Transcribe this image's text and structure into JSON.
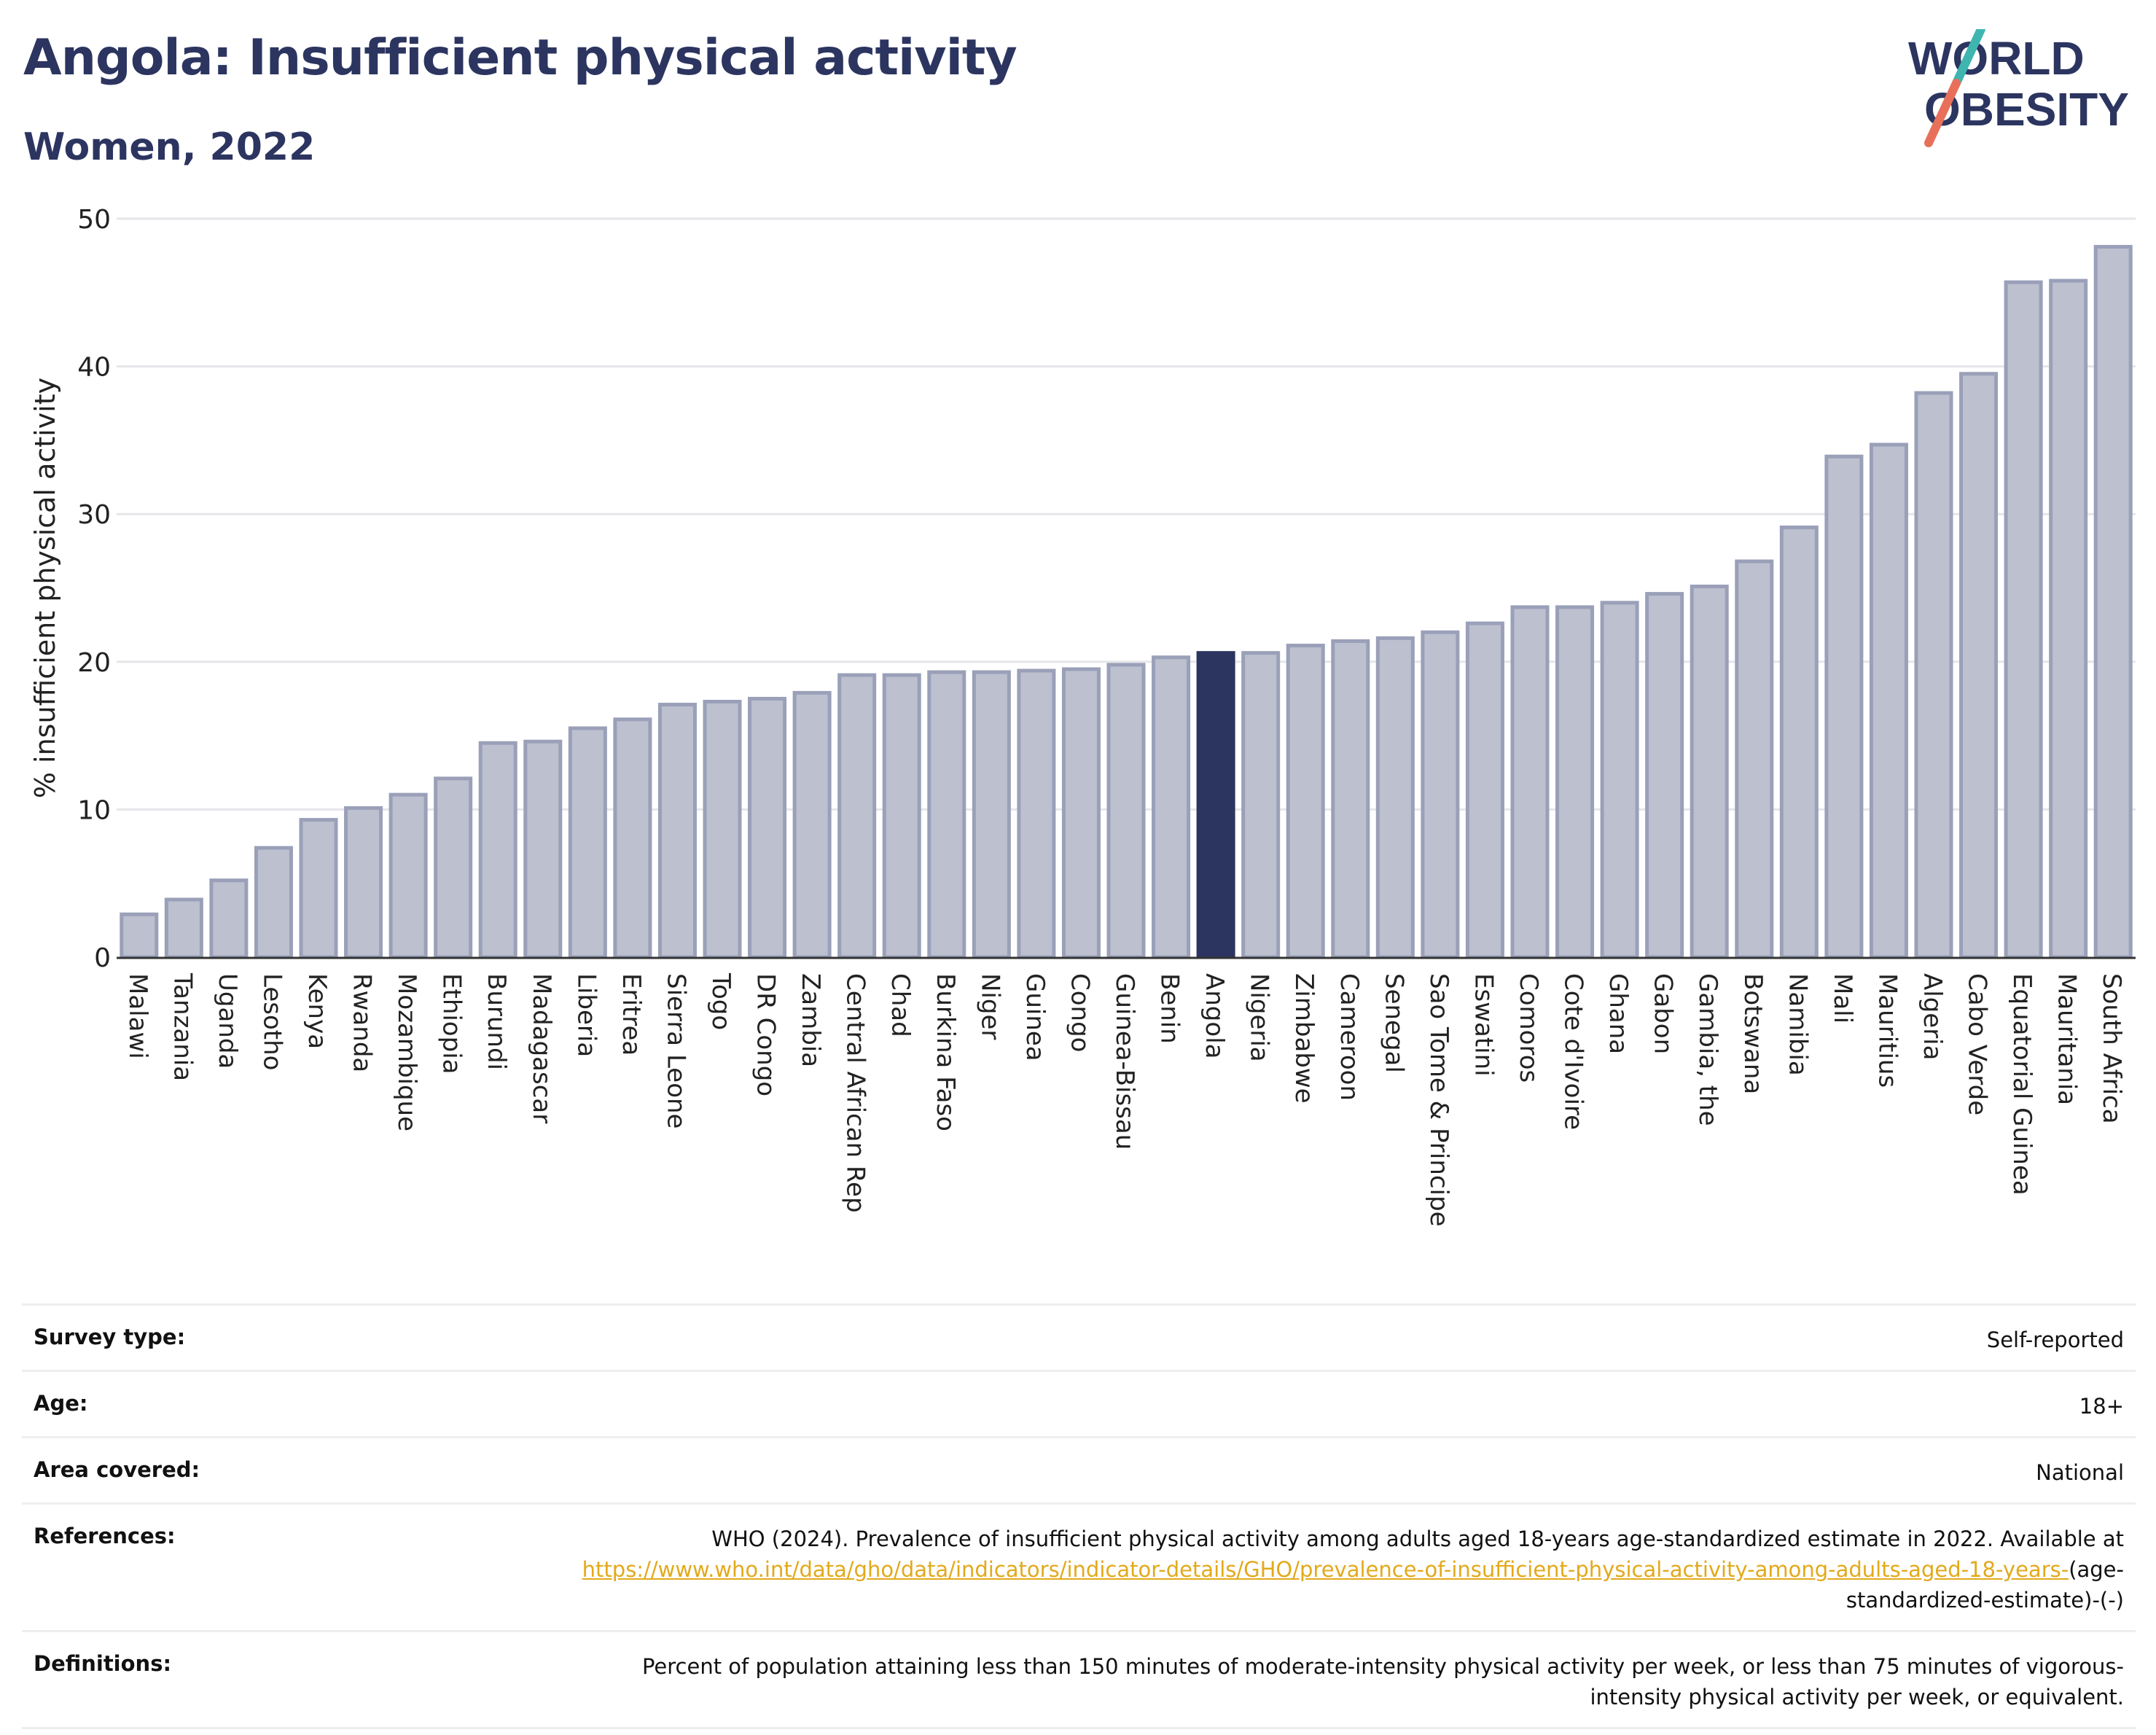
{
  "header": {
    "title": "Angola: Insufficient physical activity",
    "subtitle": "Women, 2022",
    "logo_line1": "WORLD",
    "logo_line2": "OBESITY"
  },
  "colors": {
    "bar": "#bcc0cf",
    "bar_border": "#9aa0b8",
    "highlight": "#2c3560",
    "title": "#2c3560",
    "link": "#e2a91b",
    "logo_teal": "#3fb5b0",
    "logo_coral": "#e8705a"
  },
  "chart_data": {
    "type": "bar",
    "title": "Angola: Insufficient physical activity",
    "subtitle": "Women, 2022",
    "xlabel": "",
    "ylabel": "% insufficient physical activity",
    "ylim": [
      0,
      50
    ],
    "yticks": [
      0,
      10,
      20,
      30,
      40,
      50
    ],
    "grid": true,
    "highlight": "Angola",
    "categories": [
      "Malawi",
      "Tanzania",
      "Uganda",
      "Lesotho",
      "Kenya",
      "Rwanda",
      "Mozambique",
      "Ethiopia",
      "Burundi",
      "Madagascar",
      "Liberia",
      "Eritrea",
      "Sierra Leone",
      "Togo",
      "DR Congo",
      "Zambia",
      "Central African Rep",
      "Chad",
      "Burkina Faso",
      "Niger",
      "Guinea",
      "Congo",
      "Guinea-Bissau",
      "Benin",
      "Angola",
      "Nigeria",
      "Zimbabwe",
      "Cameroon",
      "Senegal",
      "Sao Tome & Principe",
      "Eswatini",
      "Comoros",
      "Cote d'Ivoire",
      "Ghana",
      "Gabon",
      "Gambia, the",
      "Botswana",
      "Namibia",
      "Mali",
      "Mauritius",
      "Algeria",
      "Cabo Verde",
      "Equatorial Guinea",
      "Mauritania",
      "South Africa"
    ],
    "values": [
      2.9,
      3.9,
      5.2,
      7.4,
      9.3,
      10.1,
      11.0,
      12.1,
      14.5,
      14.6,
      15.5,
      16.1,
      17.1,
      17.3,
      17.5,
      17.9,
      19.1,
      19.1,
      19.3,
      19.3,
      19.4,
      19.5,
      19.8,
      20.3,
      20.6,
      20.6,
      21.1,
      21.4,
      21.6,
      22.0,
      22.6,
      23.7,
      23.7,
      24.0,
      24.6,
      25.1,
      26.8,
      29.1,
      33.9,
      34.7,
      38.2,
      39.5,
      45.7,
      45.8,
      48.1
    ]
  },
  "info": {
    "survey_label": "Survey type:",
    "survey_value": "Self-reported",
    "age_label": "Age:",
    "age_value": "18+",
    "area_label": "Area covered:",
    "area_value": "National",
    "references_label": "References:",
    "references_text": "WHO (2024). Prevalence of insufficient physical activity among adults aged 18-years age-standardized estimate in 2022. Available at",
    "references_link": "https://www.who.int/data/gho/data/indicators/indicator-details/GHO/prevalence-of-insufficient-physical-activity-among-adults-aged-18-years-",
    "references_suffix": "(age-standardized-estimate)-(-)",
    "definitions_label": "Definitions:",
    "definitions_value": "Percent of population attaining less than 150 minutes of moderate-intensity physical activity per week, or less than 75 minutes of vigorous-intensity physical activity per week, or equivalent."
  }
}
